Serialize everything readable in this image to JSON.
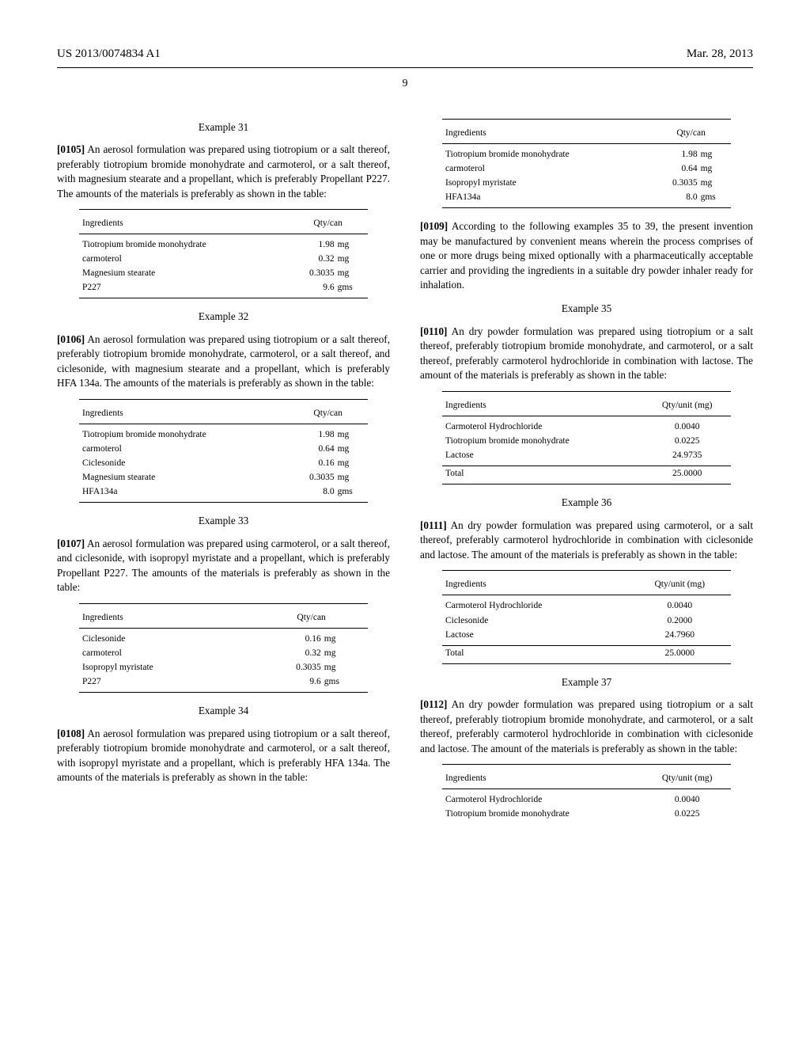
{
  "header": {
    "left": "US 2013/0074834 A1",
    "right": "Mar. 28, 2013"
  },
  "pagenum": "9",
  "ex31": {
    "title": "Example 31",
    "num": "[0105]",
    "text": "  An aerosol formulation was prepared using tiotropium or a salt thereof, preferably tiotropium bromide monohydrate and carmoterol, or a salt thereof, with magnesium stearate and a propellant, which is preferably Propellant P227. The amounts of the materials is preferably as shown in the table:",
    "th1": "Ingredients",
    "th2": "Qty/can",
    "rows": [
      {
        "ing": "Tiotropium bromide monohydrate",
        "val": "1.98",
        "unit": "mg"
      },
      {
        "ing": "carmoterol",
        "val": "0.32",
        "unit": "mg"
      },
      {
        "ing": "Magnesium stearate",
        "val": "0.3035",
        "unit": "mg"
      },
      {
        "ing": "P227",
        "val": "9.6",
        "unit": "gms"
      }
    ]
  },
  "ex32": {
    "title": "Example 32",
    "num": "[0106]",
    "text": "  An aerosol formulation was prepared using tiotropium or a salt thereof, preferably tiotropium bromide monohydrate, carmoterol, or a salt thereof, and ciclesonide, with magnesium stearate and a propellant, which is preferably HFA 134a. The amounts of the materials is preferably as shown in the table:",
    "th1": "Ingredients",
    "th2": "Qty/can",
    "rows": [
      {
        "ing": "Tiotropium bromide monohydrate",
        "val": "1.98",
        "unit": "mg"
      },
      {
        "ing": "carmoterol",
        "val": "0.64",
        "unit": "mg"
      },
      {
        "ing": "Ciclesonide",
        "val": "0.16",
        "unit": "mg"
      },
      {
        "ing": "Magnesium stearate",
        "val": "0.3035",
        "unit": "mg"
      },
      {
        "ing": "HFA134a",
        "val": "8.0",
        "unit": "gms"
      }
    ]
  },
  "ex33": {
    "title": "Example 33",
    "num": "[0107]",
    "text": "  An aerosol formulation was prepared using carmoterol, or a salt thereof, and ciclesonide, with isopropyl myristate and a propellant, which is preferably Propellant P227. The amounts of the materials is preferably as shown in the table:",
    "th1": "Ingredients",
    "th2": "Qty/can",
    "rows": [
      {
        "ing": "Ciclesonide",
        "val": "0.16",
        "unit": "mg"
      },
      {
        "ing": "carmoterol",
        "val": "0.32",
        "unit": "mg"
      },
      {
        "ing": "Isopropyl myristate",
        "val": "0.3035",
        "unit": "mg"
      },
      {
        "ing": "P227",
        "val": "9.6",
        "unit": "gms"
      }
    ]
  },
  "ex34": {
    "title": "Example 34",
    "num": "[0108]",
    "text": "  An aerosol formulation was prepared using tiotropium or a salt thereof, preferably tiotropium bromide monohydrate and carmoterol, or a salt thereof, with isopropyl myristate and a propellant, which is preferably HFA 134a. The amounts of the materials is preferably as shown in the table:",
    "th1": "Ingredients",
    "th2": "Qty/can",
    "rows": [
      {
        "ing": "Tiotropium bromide monohydrate",
        "val": "1.98",
        "unit": "mg"
      },
      {
        "ing": "carmoterol",
        "val": "0.64",
        "unit": "mg"
      },
      {
        "ing": "Isopropyl myristate",
        "val": "0.3035",
        "unit": "mg"
      },
      {
        "ing": "HFA134a",
        "val": "8.0",
        "unit": "gms"
      }
    ]
  },
  "p109": {
    "num": "[0109]",
    "text": "  According to the following examples 35 to 39, the present invention may be manufactured by convenient means wherein the process comprises of one or more drugs being mixed optionally with a pharmaceutically acceptable carrier and providing the ingredients in a suitable dry powder inhaler ready for inhalation."
  },
  "ex35": {
    "title": "Example 35",
    "num": "[0110]",
    "text": "  An dry powder formulation was prepared using tiotropium or a salt thereof, preferably tiotropium bromide monohydrate, and carmoterol, or a salt thereof, preferably carmoterol hydrochloride in combination with lactose. The amount of the materials is preferably as shown in the table:",
    "th1": "Ingredients",
    "th2": "Qty/unit (mg)",
    "rows": [
      {
        "ing": "Carmoterol Hydrochloride",
        "val": "0.0040"
      },
      {
        "ing": "Tiotropium bromide monohydrate",
        "val": "0.0225"
      },
      {
        "ing": "Lactose",
        "val": "24.9735"
      }
    ],
    "total_label": "Total",
    "total_val": "25.0000"
  },
  "ex36": {
    "title": "Example 36",
    "num": "[0111]",
    "text": "  An dry powder formulation was prepared using carmoterol, or a salt thereof, preferably carmoterol hydrochloride in combination with ciclesonide and lactose. The amount of the materials is preferably as shown in the table:",
    "th1": "Ingredients",
    "th2": "Qty/unit (mg)",
    "rows": [
      {
        "ing": "Carmoterol Hydrochloride",
        "val": "0.0040"
      },
      {
        "ing": "Ciclesonide",
        "val": "0.2000"
      },
      {
        "ing": "Lactose",
        "val": "24.7960"
      }
    ],
    "total_label": "Total",
    "total_val": "25.0000"
  },
  "ex37": {
    "title": "Example 37",
    "num": "[0112]",
    "text": "  An dry powder formulation was prepared using tiotropium or a salt thereof, preferably tiotropium bromide monohydrate, and carmoterol, or a salt thereof, preferably carmoterol hydrochloride in combination with ciclesonide and lactose. The amount of the materials is preferably as shown in the table:",
    "th1": "Ingredients",
    "th2": "Qty/unit (mg)",
    "rows": [
      {
        "ing": "Carmoterol Hydrochloride",
        "val": "0.0040"
      },
      {
        "ing": "Tiotropium bromide monohydrate",
        "val": "0.0225"
      }
    ]
  }
}
